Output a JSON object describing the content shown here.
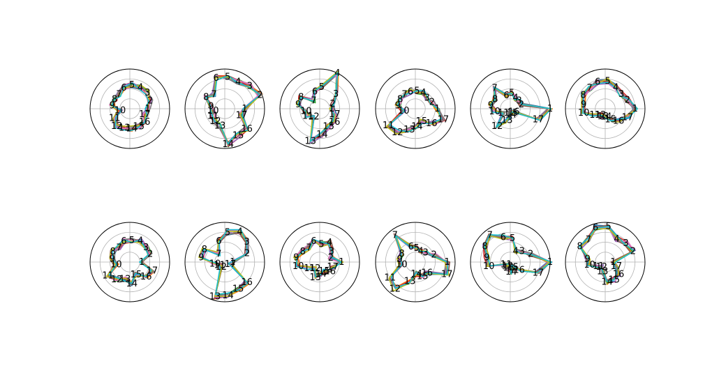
{
  "figure": {
    "background": "#ffffff",
    "axis_color": "#000000",
    "grid_color": "#b0b0b0"
  },
  "chart_data": {
    "type": "radar",
    "n_axes": 17,
    "axis_labels": [
      "1",
      "2",
      "3",
      "4",
      "5",
      "6",
      "7",
      "8",
      "9",
      "10",
      "11",
      "12",
      "13",
      "14",
      "15",
      "16",
      "17"
    ],
    "radial_range": [
      0,
      1
    ],
    "grid": true,
    "palette": [
      "#1f77b4",
      "#ff7f0e",
      "#2ca02c",
      "#d62728",
      "#9467bd",
      "#8c564b",
      "#e377c2",
      "#7f7f7f",
      "#bcbd22",
      "#17becf"
    ],
    "charts": [
      {
        "values": [
          0.45,
          0.55,
          0.6,
          0.6,
          0.6,
          0.55,
          0.45,
          0.45,
          0.45,
          0.25,
          0.45,
          0.55,
          0.5,
          0.5,
          0.5,
          0.5,
          0.4
        ]
      },
      {
        "values": [
          0.5,
          0.95,
          0.85,
          0.75,
          0.8,
          0.8,
          0.45,
          0.55,
          0.35,
          0.3,
          0.35,
          0.4,
          0.45,
          0.9,
          0.75,
          0.75,
          0.45
        ]
      },
      {
        "values": [
          0.3,
          0.35,
          0.55,
          1.0,
          0.55,
          0.45,
          0.25,
          0.55,
          0.55,
          0.35,
          0.35,
          0.25,
          0.85,
          0.65,
          0.5,
          0.5,
          0.4
        ]
      },
      {
        "values": [
          0.55,
          0.45,
          0.4,
          0.45,
          0.45,
          0.45,
          0.45,
          0.45,
          0.45,
          0.3,
          0.8,
          0.75,
          0.55,
          0.45,
          0.35,
          0.55,
          0.75
        ]
      },
      {
        "values": [
          1.0,
          0.3,
          0.3,
          0.3,
          0.4,
          0.35,
          0.65,
          0.45,
          0.5,
          0.4,
          0.2,
          0.55,
          0.3,
          0.15,
          0.1,
          0.1,
          0.75
        ]
      },
      {
        "values": [
          0.75,
          0.6,
          0.55,
          0.6,
          0.7,
          0.7,
          0.65,
          0.65,
          0.55,
          0.55,
          0.3,
          0.2,
          0.2,
          0.2,
          0.3,
          0.45,
          0.6
        ]
      },
      {
        "values": [
          0.3,
          0.55,
          0.55,
          0.6,
          0.55,
          0.55,
          0.45,
          0.5,
          0.45,
          0.35,
          0.65,
          0.55,
          0.45,
          0.55,
          0.35,
          0.55,
          0.6
        ]
      },
      {
        "values": [
          0.2,
          0.6,
          0.75,
          0.85,
          0.75,
          0.55,
          0.25,
          0.6,
          0.6,
          0.25,
          0.15,
          0.15,
          0.9,
          0.85,
          0.75,
          0.75,
          0.15
        ]
      },
      {
        "values": [
          0.55,
          0.3,
          0.4,
          0.55,
          0.45,
          0.55,
          0.45,
          0.5,
          0.6,
          0.55,
          0.3,
          0.2,
          0.4,
          0.3,
          0.25,
          0.35,
          0.35
        ]
      },
      {
        "values": [
          0.8,
          0.5,
          0.35,
          0.3,
          0.35,
          0.4,
          0.85,
          0.4,
          0.4,
          0.35,
          0.75,
          0.85,
          0.5,
          0.3,
          0.4,
          0.4,
          0.85
        ]
      },
      {
        "values": [
          1.0,
          0.55,
          0.4,
          0.3,
          0.6,
          0.65,
          0.85,
          0.75,
          0.6,
          0.55,
          0.1,
          0.1,
          0.15,
          0.25,
          0.15,
          0.3,
          0.75
        ]
      },
      {
        "values": [
          0.2,
          0.75,
          0.7,
          0.65,
          0.9,
          0.9,
          0.7,
          0.75,
          0.45,
          0.4,
          0.2,
          0.15,
          0.25,
          0.5,
          0.5,
          0.45,
          0.3
        ]
      }
    ]
  }
}
